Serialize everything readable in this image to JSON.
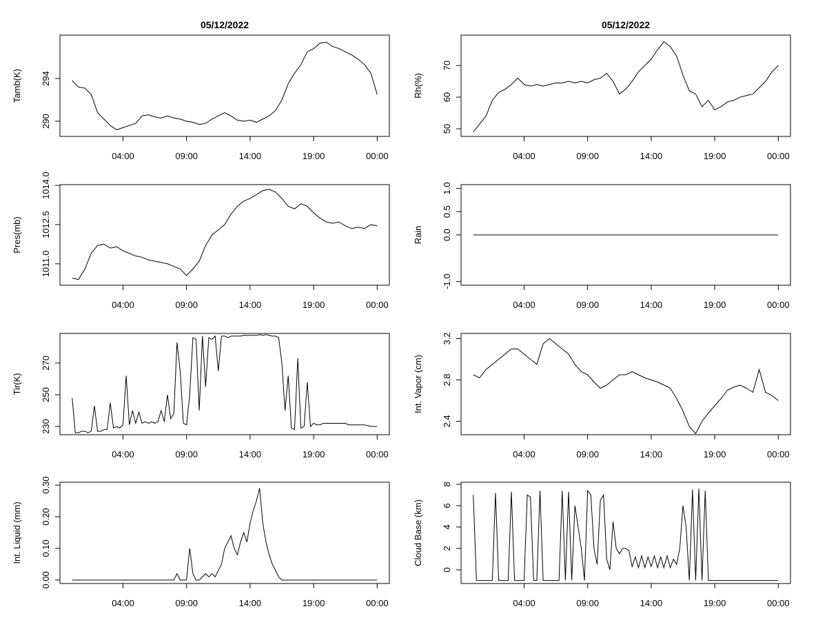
{
  "chart_data": [
    {
      "type": "line",
      "title": "05/12/2022",
      "y_label": "Tamb(K)",
      "color": "#000000",
      "x": [
        0,
        0.5,
        1,
        1.5,
        2,
        2.5,
        3,
        3.5,
        4,
        4.5,
        5,
        5.5,
        6,
        6.5,
        7,
        7.5,
        8,
        8.5,
        9,
        9.5,
        10,
        10.5,
        11,
        11.5,
        12,
        12.5,
        13,
        13.5,
        14,
        14.5,
        15,
        15.5,
        16,
        16.5,
        17,
        17.5,
        18,
        18.5,
        19,
        19.5,
        20,
        20.5,
        21,
        21.5,
        22,
        22.5,
        23,
        23.5,
        24
      ],
      "values": [
        293.8,
        293.2,
        293.1,
        292.5,
        290.8,
        290.2,
        289.6,
        289.2,
        289.4,
        289.6,
        289.8,
        290.5,
        290.6,
        290.4,
        290.3,
        290.5,
        290.3,
        290.2,
        290.0,
        289.9,
        289.7,
        289.8,
        290.2,
        290.5,
        290.8,
        290.5,
        290.1,
        290.0,
        290.1,
        289.9,
        290.2,
        290.5,
        291.0,
        292.0,
        293.5,
        294.5,
        295.3,
        296.5,
        296.8,
        297.3,
        297.4,
        297.0,
        296.8,
        296.5,
        296.2,
        295.8,
        295.3,
        294.5,
        292.5
      ],
      "xlim": [
        -0.96,
        24.96
      ],
      "xticks": [
        {
          "value": 4,
          "label": "04:00"
        },
        {
          "value": 9,
          "label": "09:00"
        },
        {
          "value": 14,
          "label": "14:00"
        },
        {
          "value": 19,
          "label": "19:00"
        },
        {
          "value": 24,
          "label": "00:00"
        }
      ],
      "ylim": [
        288.58,
        298.06
      ],
      "yticks": [
        290,
        294
      ]
    },
    {
      "type": "line",
      "title": "05/12/2022",
      "y_label": "Rh(%)",
      "color": "#000000",
      "x": [
        0,
        0.5,
        1,
        1.5,
        2,
        2.5,
        3,
        3.5,
        4,
        4.5,
        5,
        5.5,
        6,
        6.5,
        7,
        7.5,
        8,
        8.5,
        9,
        9.5,
        10,
        10.5,
        11,
        11.5,
        12,
        12.5,
        13,
        13.5,
        14,
        14.5,
        15,
        15.5,
        16,
        16.5,
        17,
        17.5,
        18,
        18.5,
        19,
        19.5,
        20,
        20.5,
        21,
        21.5,
        22,
        22.5,
        23,
        23.5,
        24
      ],
      "values": [
        49,
        51.5,
        54,
        59,
        61.5,
        62.5,
        64,
        66,
        64,
        63.5,
        64,
        63.5,
        64,
        64.5,
        64.5,
        65,
        64.5,
        65,
        64.5,
        65.5,
        66,
        67.5,
        65,
        61,
        62.5,
        65,
        68,
        70,
        72,
        75,
        77.5,
        76,
        73,
        67,
        62,
        61,
        57,
        59,
        56,
        57,
        58.5,
        59,
        60,
        60.5,
        61,
        63,
        65,
        68,
        70
      ],
      "xlim": [
        -0.96,
        24.96
      ],
      "xticks": [
        {
          "value": 4,
          "label": "04:00"
        },
        {
          "value": 9,
          "label": "09:00"
        },
        {
          "value": 14,
          "label": "14:00"
        },
        {
          "value": 19,
          "label": "19:00"
        },
        {
          "value": 24,
          "label": "00:00"
        }
      ],
      "ylim": [
        47.6,
        79.6
      ],
      "yticks": [
        50,
        60,
        70
      ]
    },
    {
      "type": "line",
      "y_label": "Pres(mb)",
      "color": "#000000",
      "x": [
        0,
        0.5,
        1,
        1.5,
        2,
        2.5,
        3,
        3.5,
        4,
        4.5,
        5,
        5.5,
        6,
        6.5,
        7,
        7.5,
        8,
        8.5,
        9,
        9.5,
        10,
        10.5,
        11,
        11.5,
        12,
        12.5,
        13,
        13.5,
        14,
        14.5,
        15,
        15.5,
        16,
        16.5,
        17,
        17.5,
        18,
        18.5,
        19,
        19.5,
        20,
        20.5,
        21,
        21.5,
        22,
        22.5,
        23,
        23.5,
        24
      ],
      "values": [
        1010.45,
        1010.4,
        1010.8,
        1011.4,
        1011.7,
        1011.75,
        1011.6,
        1011.65,
        1011.5,
        1011.4,
        1011.3,
        1011.25,
        1011.15,
        1011.1,
        1011.05,
        1011.0,
        1010.9,
        1010.8,
        1010.55,
        1010.8,
        1011.1,
        1011.7,
        1012.1,
        1012.3,
        1012.5,
        1012.9,
        1013.2,
        1013.4,
        1013.5,
        1013.65,
        1013.8,
        1013.85,
        1013.75,
        1013.5,
        1013.2,
        1013.1,
        1013.3,
        1013.2,
        1012.95,
        1012.75,
        1012.6,
        1012.55,
        1012.6,
        1012.45,
        1012.35,
        1012.4,
        1012.35,
        1012.5,
        1012.45
      ],
      "xlim": [
        -0.96,
        24.96
      ],
      "xticks": [
        {
          "value": 4,
          "label": "04:00"
        },
        {
          "value": 9,
          "label": "09:00"
        },
        {
          "value": 14,
          "label": "14:00"
        },
        {
          "value": 19,
          "label": "19:00"
        },
        {
          "value": 24,
          "label": "00:00"
        }
      ],
      "ylim": [
        1010.18,
        1014.03
      ],
      "yticks": [
        {
          "value": 1011,
          "label": "1011.0"
        },
        {
          "value": 1012.5,
          "label": "1012.5"
        },
        {
          "value": 1014,
          "label": "1014.0"
        }
      ]
    },
    {
      "type": "line",
      "y_label": "Rain",
      "color": "#000000",
      "x": [
        0,
        24
      ],
      "values": [
        0,
        0
      ],
      "xlim": [
        -0.96,
        24.96
      ],
      "xticks": [
        {
          "value": 4,
          "label": "04:00"
        },
        {
          "value": 9,
          "label": "09:00"
        },
        {
          "value": 14,
          "label": "14:00"
        },
        {
          "value": 19,
          "label": "19:00"
        },
        {
          "value": 24,
          "label": "00:00"
        }
      ],
      "ylim": [
        -1.08,
        1.08
      ],
      "yticks": [
        {
          "value": -1,
          "label": "-1.0"
        },
        {
          "value": 0,
          "label": "0.0"
        },
        0.5,
        {
          "value": 1,
          "label": "1.0"
        }
      ]
    },
    {
      "type": "line",
      "y_label": "Tir(K)",
      "color": "#000000",
      "x": [
        0,
        0.25,
        0.5,
        0.75,
        1,
        1.25,
        1.5,
        1.75,
        2,
        2.25,
        2.5,
        2.75,
        3,
        3.25,
        3.5,
        3.75,
        4,
        4.25,
        4.5,
        4.75,
        5,
        5.25,
        5.5,
        5.75,
        6,
        6.25,
        6.5,
        6.75,
        7,
        7.25,
        7.5,
        7.75,
        8,
        8.25,
        8.5,
        8.75,
        9,
        9.25,
        9.5,
        9.75,
        10,
        10.25,
        10.5,
        10.75,
        11,
        11.25,
        11.5,
        11.75,
        12,
        12.25,
        12.5,
        12.75,
        13,
        13.25,
        13.5,
        13.75,
        14,
        14.25,
        14.5,
        14.75,
        15,
        15.25,
        15.5,
        15.75,
        16,
        16.25,
        16.5,
        16.75,
        17,
        17.25,
        17.5,
        17.75,
        18,
        18.25,
        18.5,
        18.75,
        19,
        19.25,
        19.5,
        19.75,
        20,
        20.25,
        20.5,
        20.75,
        21,
        21.25,
        21.5,
        21.75,
        22,
        22.25,
        22.5,
        22.75,
        23,
        23.25,
        23.5,
        23.75,
        24
      ],
      "values": [
        248,
        226,
        226,
        227,
        227,
        226,
        227,
        243,
        227,
        227,
        228,
        228,
        245,
        229,
        230,
        229,
        231,
        262,
        231,
        240,
        232,
        239,
        232,
        233,
        232,
        233,
        232,
        233,
        240,
        233,
        250,
        235,
        238,
        283,
        265,
        232,
        231,
        250,
        286,
        285,
        240,
        287,
        255,
        286,
        285,
        287,
        265,
        287,
        287,
        286,
        287,
        287,
        287,
        287,
        287.5,
        287.5,
        287.5,
        287.5,
        287.5,
        288,
        287.5,
        288,
        287.5,
        287,
        287,
        286,
        270,
        240,
        262,
        229,
        228,
        273,
        229,
        230,
        258,
        230,
        232,
        231,
        231,
        232,
        232,
        232,
        232,
        232,
        232,
        232,
        232,
        231,
        231,
        231,
        231,
        231,
        231,
        230.5,
        230,
        230,
        230
      ],
      "xlim": [
        -0.96,
        24.96
      ],
      "xticks": [
        {
          "value": 4,
          "label": "04:00"
        },
        {
          "value": 9,
          "label": "09:00"
        },
        {
          "value": 14,
          "label": "14:00"
        },
        {
          "value": 19,
          "label": "19:00"
        },
        {
          "value": 24,
          "label": "00:00"
        }
      ],
      "ylim": [
        224.8,
        288.7
      ],
      "yticks": [
        230,
        250,
        270
      ]
    },
    {
      "type": "line",
      "y_label": "Int. Vapor (cm)",
      "color": "#000000",
      "x": [
        0,
        0.5,
        1,
        1.5,
        2,
        2.5,
        3,
        3.5,
        4,
        4.5,
        5,
        5.5,
        6,
        6.5,
        7,
        7.5,
        8,
        8.5,
        9,
        9.5,
        10,
        10.5,
        11,
        11.5,
        12,
        12.5,
        13,
        13.5,
        14,
        14.5,
        15,
        15.5,
        16,
        16.5,
        17,
        17.5,
        18,
        18.5,
        19,
        19.5,
        20,
        20.5,
        21,
        21.5,
        22,
        22.5,
        23,
        23.5,
        24
      ],
      "values": [
        2.85,
        2.82,
        2.9,
        2.95,
        3.0,
        3.05,
        3.1,
        3.1,
        3.05,
        3.0,
        2.95,
        3.15,
        3.2,
        3.15,
        3.1,
        3.05,
        2.95,
        2.88,
        2.85,
        2.78,
        2.72,
        2.75,
        2.8,
        2.85,
        2.85,
        2.88,
        2.85,
        2.82,
        2.8,
        2.78,
        2.75,
        2.72,
        2.62,
        2.5,
        2.35,
        2.28,
        2.4,
        2.48,
        2.55,
        2.62,
        2.7,
        2.73,
        2.75,
        2.72,
        2.68,
        2.9,
        2.68,
        2.65,
        2.6
      ],
      "xlim": [
        -0.96,
        24.96
      ],
      "xticks": [
        {
          "value": 4,
          "label": "04:00"
        },
        {
          "value": 9,
          "label": "09:00"
        },
        {
          "value": 14,
          "label": "14:00"
        },
        {
          "value": 19,
          "label": "19:00"
        },
        {
          "value": 24,
          "label": "00:00"
        }
      ],
      "ylim": [
        2.27,
        3.25
      ],
      "yticks": [
        2.4,
        2.8,
        3.2
      ]
    },
    {
      "type": "line",
      "y_label": "Int. Liquid (mm)",
      "color": "#000000",
      "x": [
        0,
        0.25,
        0.5,
        0.75,
        1,
        1.25,
        1.5,
        1.75,
        2,
        2.25,
        2.5,
        2.75,
        3,
        3.25,
        3.5,
        3.75,
        4,
        4.25,
        4.5,
        4.75,
        5,
        5.25,
        5.5,
        5.75,
        6,
        6.25,
        6.5,
        6.75,
        7,
        7.25,
        7.5,
        7.75,
        8,
        8.25,
        8.5,
        8.75,
        9,
        9.25,
        9.5,
        9.75,
        10,
        10.25,
        10.5,
        10.75,
        11,
        11.25,
        11.5,
        11.75,
        12,
        12.25,
        12.5,
        12.75,
        13,
        13.25,
        13.5,
        13.75,
        14,
        14.25,
        14.5,
        14.75,
        15,
        15.25,
        15.5,
        15.75,
        16,
        16.25,
        16.5,
        16.75,
        17,
        17.25,
        17.5,
        17.75,
        18,
        18.25,
        18.5,
        18.75,
        19,
        19.25,
        19.5,
        19.75,
        20,
        20.25,
        20.5,
        20.75,
        21,
        21.25,
        21.5,
        21.75,
        22,
        22.25,
        22.5,
        22.75,
        23,
        23.25,
        23.5,
        23.75,
        24
      ],
      "values": [
        0,
        0,
        0,
        0,
        0,
        0,
        0,
        0,
        0,
        0,
        0,
        0,
        0,
        0,
        0,
        0,
        0,
        0,
        0,
        0,
        0,
        0,
        0,
        0,
        0,
        0,
        0,
        0,
        0,
        0,
        0,
        0,
        0,
        0.02,
        0,
        0,
        0,
        0.1,
        0.02,
        0,
        0,
        0.01,
        0.02,
        0.01,
        0.02,
        0.01,
        0.03,
        0.05,
        0.1,
        0.12,
        0.14,
        0.1,
        0.08,
        0.12,
        0.15,
        0.12,
        0.18,
        0.22,
        0.25,
        0.29,
        0.18,
        0.12,
        0.08,
        0.05,
        0.03,
        0.01,
        0,
        0,
        0,
        0,
        0,
        0,
        0,
        0,
        0,
        0,
        0,
        0,
        0,
        0,
        0,
        0,
        0,
        0,
        0,
        0,
        0,
        0,
        0,
        0,
        0,
        0,
        0,
        0,
        0,
        0,
        0
      ],
      "xlim": [
        -0.96,
        24.96
      ],
      "xticks": [
        {
          "value": 4,
          "label": "04:00"
        },
        {
          "value": 9,
          "label": "09:00"
        },
        {
          "value": 14,
          "label": "14:00"
        },
        {
          "value": 19,
          "label": "19:00"
        },
        {
          "value": 24,
          "label": "00:00"
        }
      ],
      "ylim": [
        -0.011,
        0.309
      ],
      "yticks": [
        {
          "value": 0,
          "label": "0.00"
        },
        {
          "value": 0.1,
          "label": "0.10"
        },
        {
          "value": 0.2,
          "label": "0.20"
        },
        {
          "value": 0.3,
          "label": "0.30"
        }
      ]
    },
    {
      "type": "line",
      "y_label": "Cloud Base (km)",
      "color": "#000000",
      "x": [
        0,
        0.25,
        0.5,
        0.75,
        1,
        1.25,
        1.5,
        1.75,
        2,
        2.25,
        2.5,
        2.75,
        3,
        3.25,
        3.5,
        3.75,
        4,
        4.25,
        4.5,
        4.75,
        5,
        5.25,
        5.5,
        5.75,
        6,
        6.25,
        6.5,
        6.75,
        7,
        7.25,
        7.5,
        7.75,
        8,
        8.25,
        8.5,
        8.75,
        9,
        9.25,
        9.5,
        9.75,
        10,
        10.25,
        10.5,
        10.75,
        11,
        11.25,
        11.5,
        11.75,
        12,
        12.25,
        12.5,
        12.75,
        13,
        13.25,
        13.5,
        13.75,
        14,
        14.25,
        14.5,
        14.75,
        15,
        15.25,
        15.5,
        15.75,
        16,
        16.25,
        16.5,
        16.75,
        17,
        17.25,
        17.5,
        17.75,
        18,
        18.25,
        18.5,
        18.75,
        19,
        19.25,
        19.5,
        19.75,
        20,
        20.25,
        20.5,
        20.75,
        21,
        21.25,
        21.5,
        21.75,
        22,
        22.25,
        22.5,
        22.75,
        23,
        23.25,
        23.5,
        23.75,
        24
      ],
      "values": [
        7,
        -1,
        -1,
        -1,
        -1,
        -1,
        -1,
        7.2,
        -1,
        -1,
        -1,
        -1,
        7.3,
        -1,
        -1,
        -1,
        -1,
        7,
        6.8,
        -1,
        -1,
        7.4,
        -1,
        -1,
        -1,
        -1,
        -1,
        -1,
        7.4,
        -1,
        7.3,
        -1,
        6,
        4,
        2,
        -1,
        7.4,
        7,
        2,
        0.5,
        6.5,
        7,
        1,
        0,
        4.5,
        2,
        1.5,
        2,
        2,
        1.8,
        0.3,
        1.2,
        0.2,
        1.3,
        0.2,
        1.2,
        0.3,
        1.3,
        0.2,
        1.2,
        0.2,
        1.3,
        0.2,
        1.0,
        0.5,
        2,
        6,
        4,
        -1,
        7.5,
        -1,
        7.6,
        -1,
        7.4,
        -1,
        -1,
        -1,
        -1,
        -1,
        -1,
        -1,
        -1,
        -1,
        -1,
        -1,
        -1,
        -1,
        -1,
        -1,
        -1,
        -1,
        -1,
        -1,
        -1,
        -1,
        -1,
        -1
      ],
      "xlim": [
        -0.96,
        24.96
      ],
      "xticks": [
        {
          "value": 4,
          "label": "04:00"
        },
        {
          "value": 9,
          "label": "09:00"
        },
        {
          "value": 14,
          "label": "14:00"
        },
        {
          "value": 19,
          "label": "19:00"
        },
        {
          "value": 24,
          "label": "00:00"
        }
      ],
      "ylim": [
        -1.28,
        8.19
      ],
      "yticks": [
        0,
        2,
        4,
        6,
        8
      ]
    }
  ]
}
